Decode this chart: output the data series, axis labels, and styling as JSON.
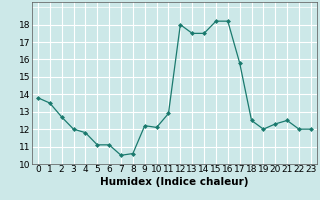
{
  "x": [
    0,
    1,
    2,
    3,
    4,
    5,
    6,
    7,
    8,
    9,
    10,
    11,
    12,
    13,
    14,
    15,
    16,
    17,
    18,
    19,
    20,
    21,
    22,
    23
  ],
  "y": [
    13.8,
    13.5,
    12.7,
    12.0,
    11.8,
    11.1,
    11.1,
    10.5,
    10.6,
    12.2,
    12.1,
    12.9,
    18.0,
    17.5,
    17.5,
    18.2,
    18.2,
    15.8,
    12.5,
    12.0,
    12.3,
    12.5,
    12.0,
    12.0
  ],
  "xlabel": "Humidex (Indice chaleur)",
  "ylim": [
    10,
    19
  ],
  "xlim": [
    -0.5,
    23.5
  ],
  "yticks": [
    10,
    11,
    12,
    13,
    14,
    15,
    16,
    17,
    18
  ],
  "xticks": [
    0,
    1,
    2,
    3,
    4,
    5,
    6,
    7,
    8,
    9,
    10,
    11,
    12,
    13,
    14,
    15,
    16,
    17,
    18,
    19,
    20,
    21,
    22,
    23
  ],
  "line_color": "#1a7a6e",
  "marker": "D",
  "marker_size": 2.0,
  "bg_color": "#cce8e8",
  "grid_color": "#ffffff",
  "tick_label_fontsize": 6.5,
  "xlabel_fontsize": 7.5
}
